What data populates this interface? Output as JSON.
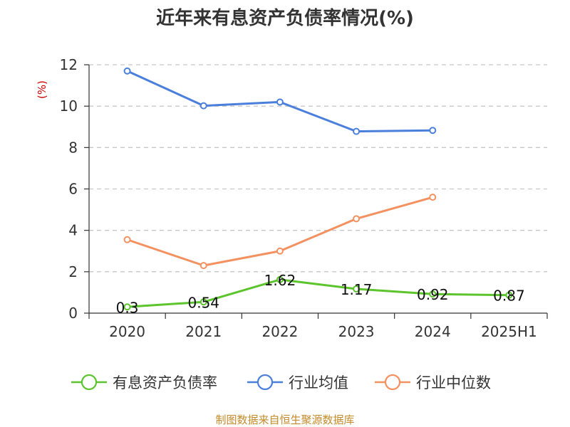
{
  "chart_data": {
    "type": "line",
    "title": "近年来有息资产负债率情况(%)",
    "unit_label": "(%)",
    "categories": [
      "2020",
      "2021",
      "2022",
      "2023",
      "2024",
      "2025H1"
    ],
    "ylim": [
      0,
      12
    ],
    "yticks": [
      0,
      2,
      4,
      6,
      8,
      10,
      12
    ],
    "grid": true,
    "legend_position": "bottom",
    "series": [
      {
        "name": "有息资产负债率",
        "color": "#5cc42c",
        "values": [
          0.3,
          0.54,
          1.62,
          1.17,
          0.92,
          0.87
        ],
        "data_labels": [
          "0.3",
          "0.54",
          "1.62",
          "1.17",
          "0.92",
          "0.87"
        ]
      },
      {
        "name": "行业均值",
        "color": "#4a7fdc",
        "values": [
          11.7,
          10.02,
          10.2,
          8.78,
          8.83,
          null
        ]
      },
      {
        "name": "行业中位数",
        "color": "#f39160",
        "values": [
          3.55,
          2.3,
          3.0,
          4.56,
          5.6,
          null
        ]
      }
    ]
  },
  "source_text": "制图数据来自恒生聚源数据库"
}
